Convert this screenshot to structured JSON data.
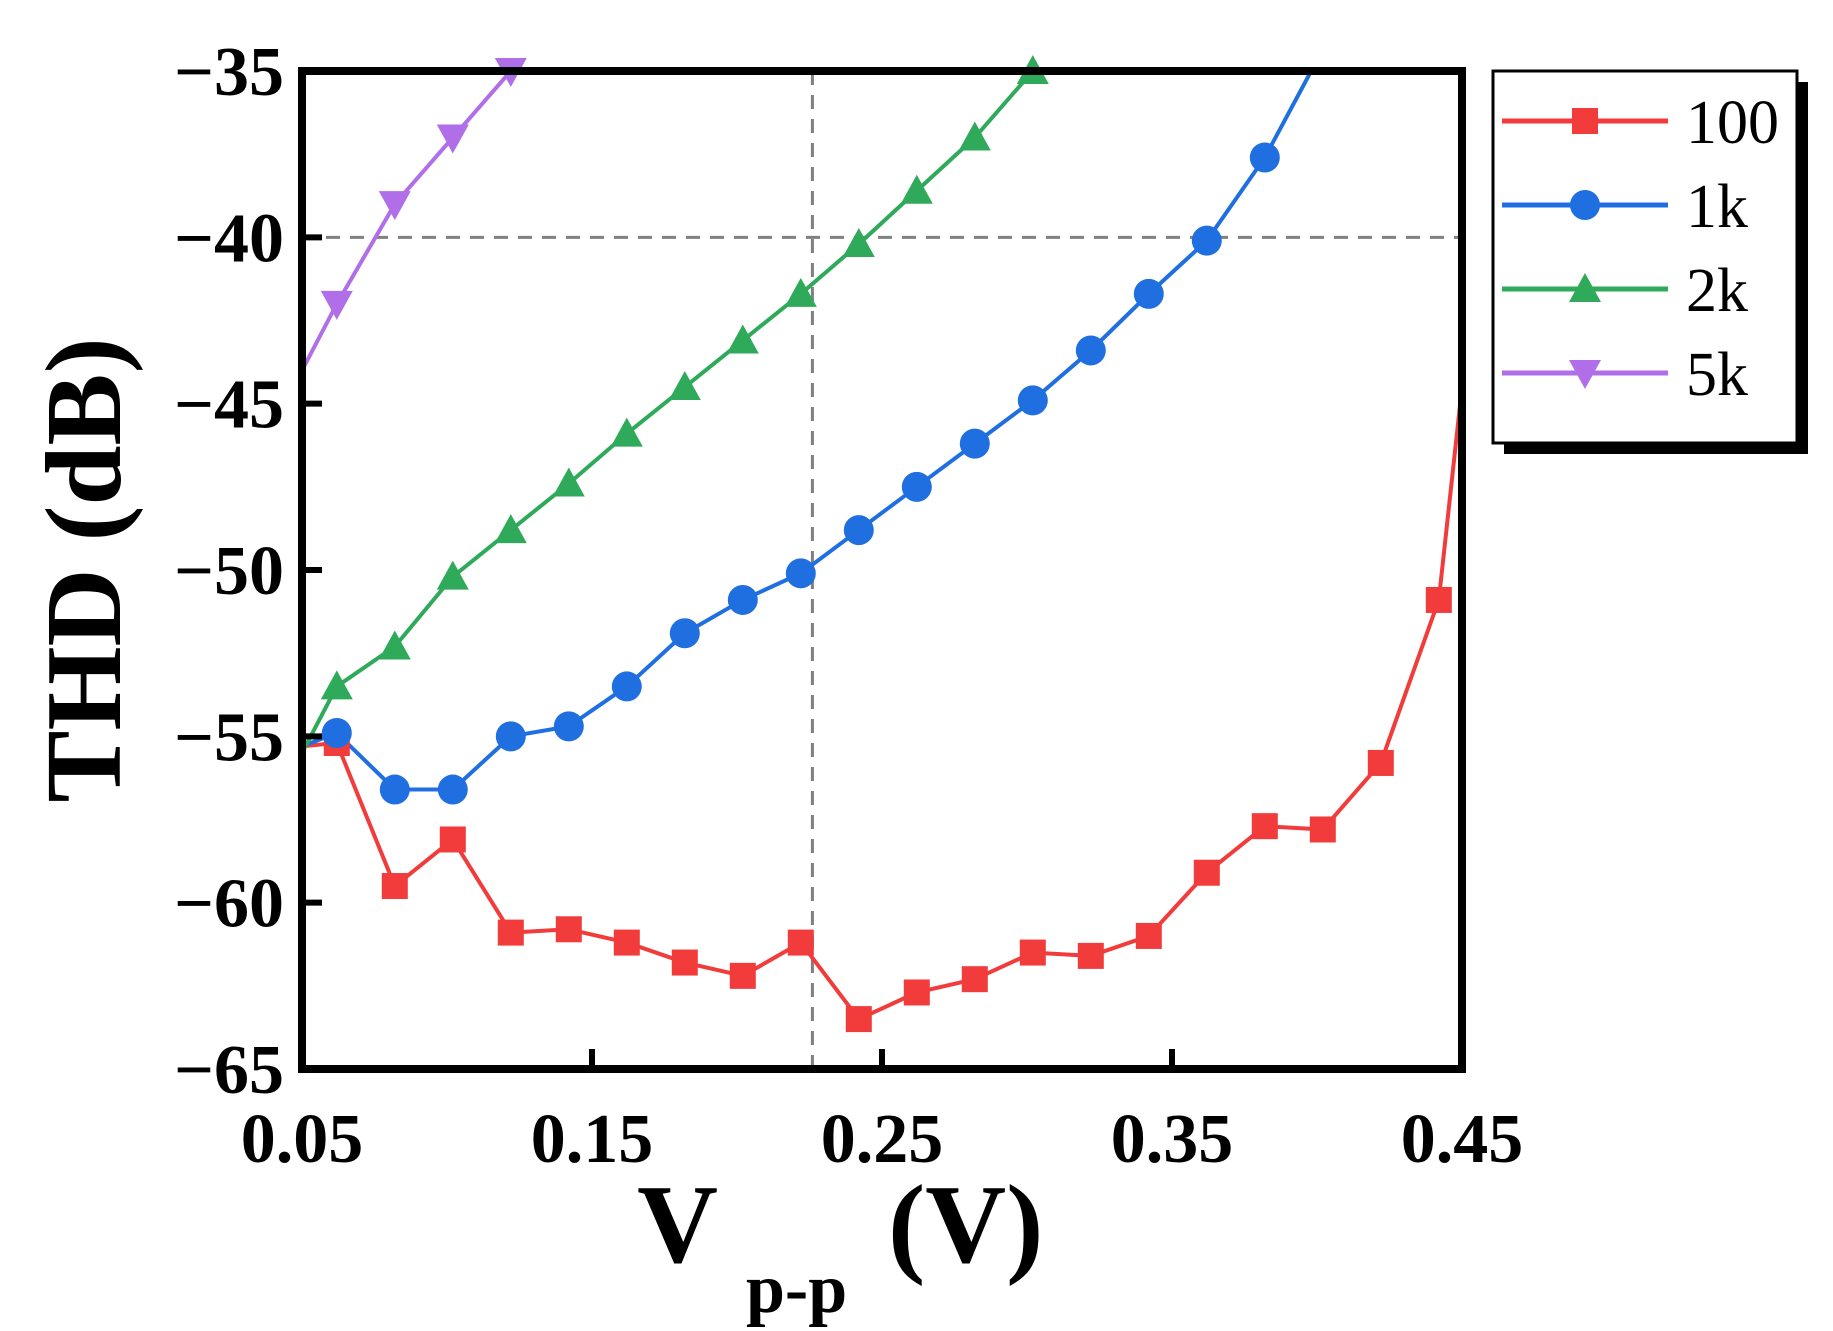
{
  "chart_data": {
    "type": "line",
    "xlabel": {
      "main": "V",
      "sub": "p-p",
      "unit": "(V)"
    },
    "ylabel": "THD (dB)",
    "xlim": [
      0.05,
      0.45
    ],
    "ylim": [
      -65,
      -35
    ],
    "xticks": [
      {
        "value": 0.05,
        "label": "0.05"
      },
      {
        "value": 0.15,
        "label": "0.15"
      },
      {
        "value": 0.25,
        "label": "0.25"
      },
      {
        "value": 0.35,
        "label": "0.35"
      },
      {
        "value": 0.45,
        "label": "0.45"
      }
    ],
    "yticks": [
      {
        "value": -35,
        "label": "−35"
      },
      {
        "value": -40,
        "label": "−40"
      },
      {
        "value": -45,
        "label": "−45"
      },
      {
        "value": -50,
        "label": "−50"
      },
      {
        "value": -55,
        "label": "−55"
      },
      {
        "value": -60,
        "label": "−60"
      },
      {
        "value": -65,
        "label": "−65"
      }
    ],
    "reference_lines": {
      "x": 0.226,
      "y": -40
    },
    "series": [
      {
        "name": "100",
        "color": "#f23b3b",
        "marker": "square",
        "x": [
          0.05,
          0.062,
          0.082,
          0.102,
          0.122,
          0.142,
          0.162,
          0.182,
          0.202,
          0.222,
          0.242,
          0.262,
          0.282,
          0.302,
          0.322,
          0.342,
          0.362,
          0.382,
          0.402,
          0.422,
          0.442,
          0.45
        ],
        "y": [
          -55.3,
          -55.2,
          -59.5,
          -58.1,
          -60.9,
          -60.8,
          -61.2,
          -61.8,
          -62.2,
          -61.2,
          -63.5,
          -62.7,
          -62.3,
          -61.5,
          -61.6,
          -61.0,
          -59.1,
          -57.7,
          -57.8,
          -55.8,
          -50.9,
          -44.5
        ],
        "markers_from": 1,
        "markers_to": 20
      },
      {
        "name": "1k",
        "color": "#1f6fe0",
        "marker": "circle",
        "x": [
          0.05,
          0.062,
          0.082,
          0.102,
          0.122,
          0.142,
          0.162,
          0.182,
          0.202,
          0.222,
          0.242,
          0.262,
          0.282,
          0.302,
          0.322,
          0.342,
          0.362,
          0.382,
          0.398
        ],
        "y": [
          -55.3,
          -54.9,
          -56.6,
          -56.6,
          -55.0,
          -54.7,
          -53.5,
          -51.9,
          -50.9,
          -50.1,
          -48.8,
          -47.5,
          -46.2,
          -44.9,
          -43.4,
          -41.7,
          -40.1,
          -37.6,
          -35.0
        ],
        "markers_from": 1,
        "markers_to": 17
      },
      {
        "name": "2k",
        "color": "#2faa5a",
        "marker": "triangle-up",
        "x": [
          0.05,
          0.062,
          0.082,
          0.102,
          0.122,
          0.142,
          0.162,
          0.182,
          0.202,
          0.222,
          0.242,
          0.262,
          0.282,
          0.302
        ],
        "y": [
          -55.5,
          -53.5,
          -52.3,
          -50.2,
          -48.8,
          -47.4,
          -45.9,
          -44.5,
          -43.1,
          -41.7,
          -40.2,
          -38.6,
          -37.0,
          -35.0
        ],
        "markers_from": 1,
        "markers_to": 13
      },
      {
        "name": "5k",
        "color": "#b06ee8",
        "marker": "triangle-down",
        "x": [
          0.05,
          0.062,
          0.082,
          0.102,
          0.122
        ],
        "y": [
          -44.0,
          -42.0,
          -39.0,
          -37.0,
          -35.0
        ],
        "markers_from": 1,
        "markers_to": 4
      }
    ],
    "legend_position": "top-right, outside plot"
  }
}
